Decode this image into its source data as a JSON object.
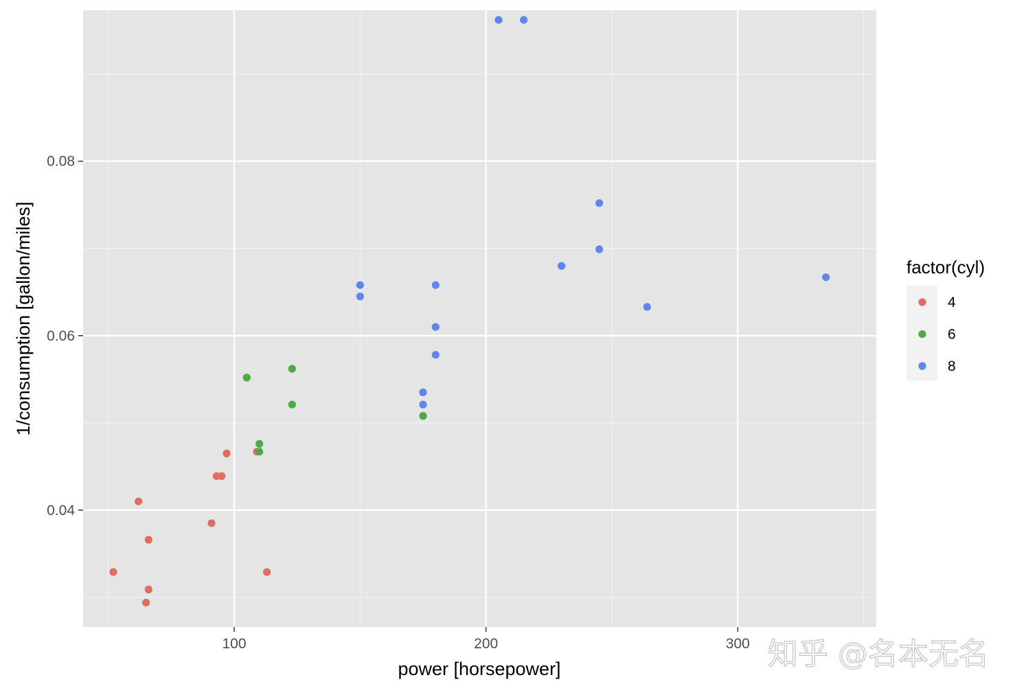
{
  "chart_data": {
    "type": "scatter",
    "xlabel": "power [horsepower]",
    "ylabel": "1/consumption [gallon/miles]",
    "xlim": [
      40,
      355
    ],
    "ylim": [
      0.0266,
      0.0973
    ],
    "x_ticks": [
      100,
      200,
      300
    ],
    "x_tick_labels": [
      "100",
      "200",
      "300"
    ],
    "y_ticks": [
      0.04,
      0.06,
      0.08
    ],
    "y_tick_labels": [
      "0.04",
      "0.06",
      "0.08"
    ],
    "grid": true,
    "legend": {
      "title": "factor(cyl)",
      "position": "right"
    },
    "series": [
      {
        "name": "4",
        "color": "#E06C62",
        "points": [
          [
            52,
            0.0329
          ],
          [
            62,
            0.041
          ],
          [
            65,
            0.0294
          ],
          [
            66,
            0.0309
          ],
          [
            66,
            0.0366
          ],
          [
            91,
            0.0385
          ],
          [
            93,
            0.0439
          ],
          [
            95,
            0.0439
          ],
          [
            97,
            0.0465
          ],
          [
            109,
            0.0467
          ],
          [
            113,
            0.0329
          ]
        ]
      },
      {
        "name": "6",
        "color": "#4DAA45",
        "points": [
          [
            105,
            0.0552
          ],
          [
            110,
            0.0476
          ],
          [
            110,
            0.0467
          ],
          [
            123,
            0.0562
          ],
          [
            123,
            0.0521
          ],
          [
            175,
            0.0508
          ]
        ]
      },
      {
        "name": "8",
        "color": "#5E86EE",
        "points": [
          [
            150,
            0.0658
          ],
          [
            150,
            0.0645
          ],
          [
            175,
            0.0535
          ],
          [
            175,
            0.0521
          ],
          [
            180,
            0.0658
          ],
          [
            180,
            0.061
          ],
          [
            180,
            0.0578
          ],
          [
            205,
            0.0962
          ],
          [
            215,
            0.0962
          ],
          [
            230,
            0.068
          ],
          [
            245,
            0.0752
          ],
          [
            245,
            0.0699
          ],
          [
            264,
            0.0633
          ],
          [
            335,
            0.0667
          ]
        ]
      }
    ]
  },
  "watermark": "知乎 @名本无名"
}
